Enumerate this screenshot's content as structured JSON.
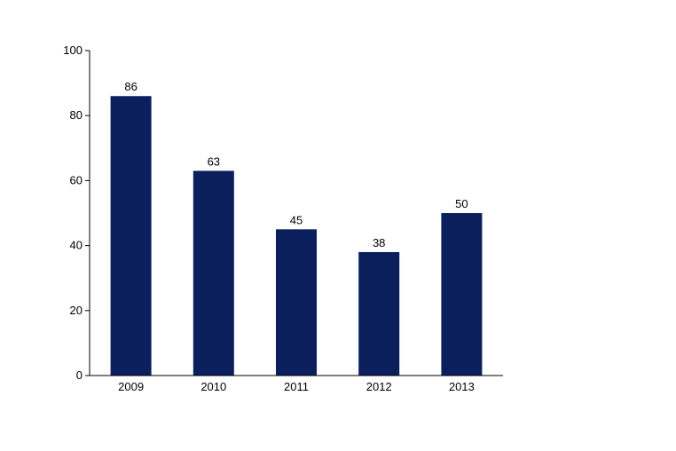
{
  "chart_data": {
    "type": "bar",
    "categories": [
      "2009",
      "2010",
      "2011",
      "2012",
      "2013"
    ],
    "values": [
      86,
      63,
      45,
      38,
      50
    ],
    "data_labels": [
      "86",
      "63",
      "45",
      "38",
      "50"
    ],
    "yticks": [
      0,
      20,
      40,
      60,
      80,
      100
    ],
    "ylim": [
      0,
      100
    ],
    "title": "",
    "xlabel": "",
    "ylabel": "",
    "grid": false,
    "legend": "none",
    "bar_color": "#0a1f5c"
  }
}
